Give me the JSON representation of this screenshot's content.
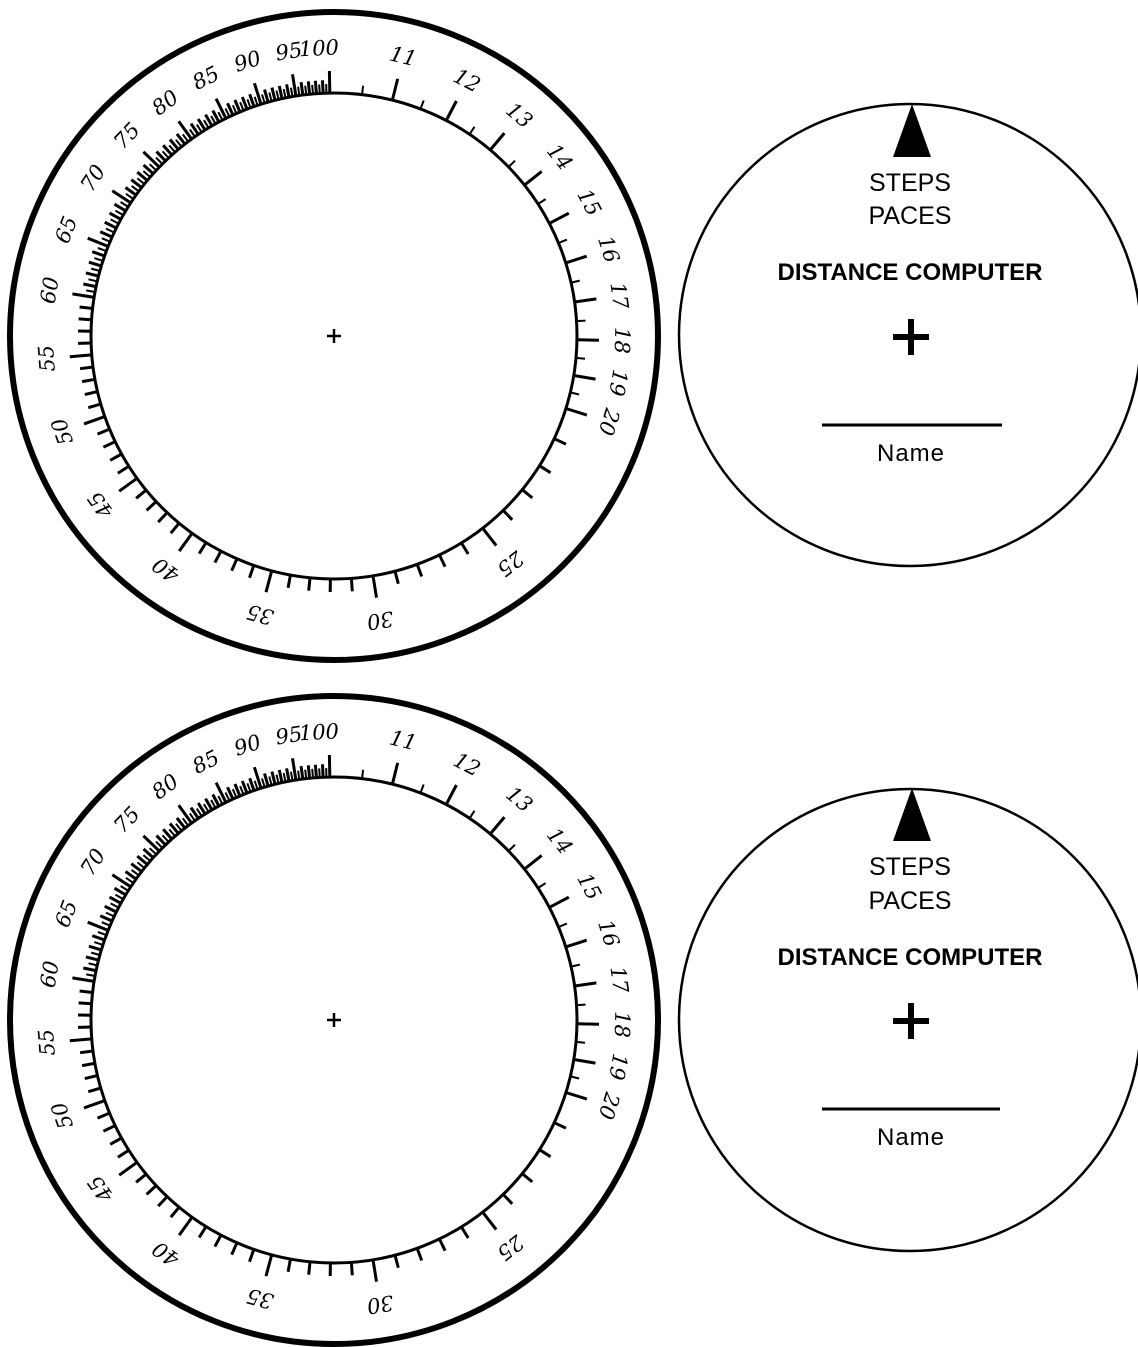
{
  "dials": [
    {
      "outer_labels": [
        "11",
        "12",
        "13",
        "14",
        "15",
        "16",
        "17",
        "18",
        "19",
        "20",
        "25",
        "30",
        "35",
        "40",
        "45",
        "50",
        "55",
        "60",
        "65",
        "70",
        "75",
        "80",
        "85",
        "90",
        "95",
        "100"
      ],
      "cover": {
        "line1": "STEPS",
        "line2": "PACES",
        "title": "DISTANCE COMPUTER",
        "name_label": "Name"
      }
    },
    {
      "outer_labels": [
        "11",
        "12",
        "13",
        "14",
        "15",
        "16",
        "17",
        "18",
        "19",
        "20",
        "25",
        "30",
        "35",
        "40",
        "45",
        "50",
        "55",
        "60",
        "65",
        "70",
        "75",
        "80",
        "85",
        "90",
        "95",
        "100"
      ],
      "cover": {
        "line1": "STEPS",
        "line2": "PACES",
        "title": "DISTANCE COMPUTER",
        "name_label": "Name"
      }
    }
  ],
  "colors": {
    "ink": "#000000",
    "paper": "#ffffff"
  }
}
